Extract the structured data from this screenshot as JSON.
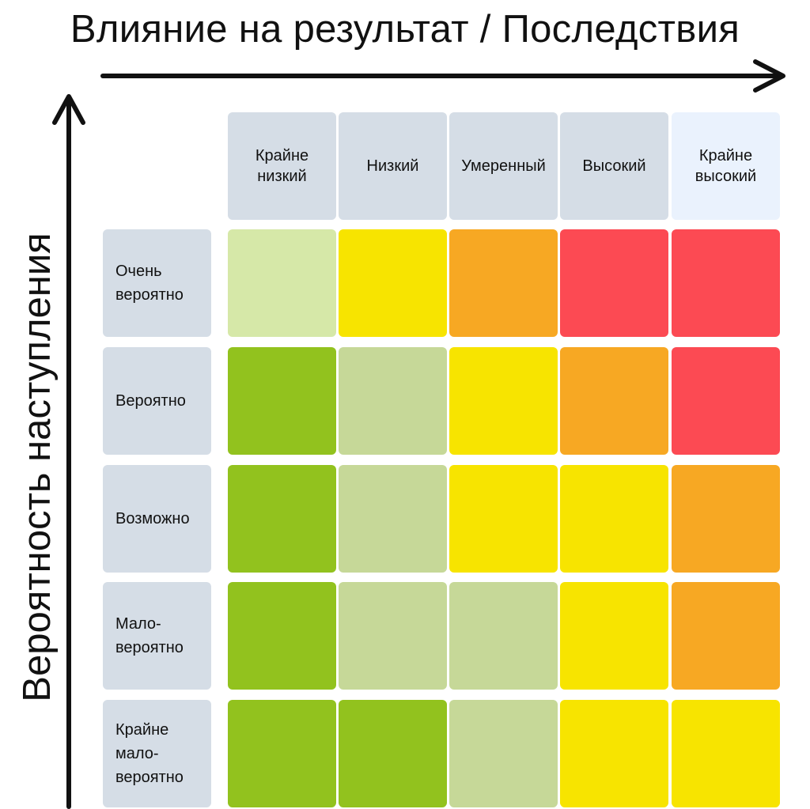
{
  "titles": {
    "impact": "Влияние на результат / Последствия",
    "probability": "Вероятность наступления"
  },
  "columns": [
    {
      "label": "Крайне\nнизкий",
      "color": "#d5dde6"
    },
    {
      "label": "Низкий",
      "color": "#d5dde6"
    },
    {
      "label": "Умеренный",
      "color": "#d5dde6"
    },
    {
      "label": "Высокий",
      "color": "#d5dde6"
    },
    {
      "label": "Крайне\nвысокий",
      "color": "#eaf2fd"
    }
  ],
  "rows": [
    {
      "label": "Очень\nвероятно",
      "cells": [
        "#d6e8a8",
        "#f7e400",
        "#f7a823",
        "#fc4a53",
        "#fc4a53"
      ]
    },
    {
      "label": "Вероятно",
      "cells": [
        "#92c21e",
        "#c6d898",
        "#f7e400",
        "#f7a823",
        "#fc4a53"
      ]
    },
    {
      "label": "Возможно",
      "cells": [
        "#92c21e",
        "#c6d898",
        "#f7e400",
        "#f7e400",
        "#f7a823"
      ]
    },
    {
      "label": "Мало-\nвероятно",
      "cells": [
        "#92c21e",
        "#c6d898",
        "#c6d898",
        "#f7e400",
        "#f7a823"
      ]
    },
    {
      "label": "Крайне\nмало-\nвероятно",
      "cells": [
        "#92c21e",
        "#92c21e",
        "#c6d898",
        "#f7e400",
        "#f7e400"
      ]
    }
  ],
  "colors": {
    "row_header_bg": "#d5dde6",
    "arrow": "#111111"
  }
}
